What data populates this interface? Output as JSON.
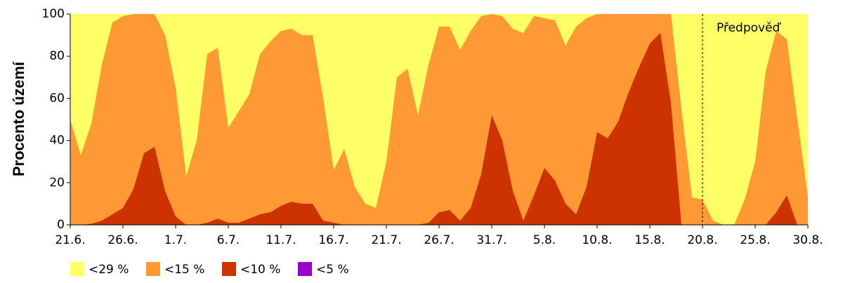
{
  "chart_data": {
    "type": "area",
    "y_label": "Procento území",
    "categories": [
      "21.6.",
      null,
      null,
      null,
      null,
      "26.6.",
      null,
      null,
      null,
      null,
      "1.7.",
      null,
      null,
      null,
      null,
      "6.7.",
      null,
      null,
      null,
      null,
      "11.7.",
      null,
      null,
      null,
      null,
      "16.7.",
      null,
      null,
      null,
      null,
      "21.7.",
      null,
      null,
      null,
      null,
      "26.7.",
      null,
      null,
      null,
      null,
      "31.7.",
      null,
      null,
      null,
      null,
      "5.8.",
      null,
      null,
      null,
      null,
      "10.8.",
      null,
      null,
      null,
      null,
      "15.8.",
      null,
      null,
      null,
      null,
      "20.8.",
      null,
      null,
      null,
      null,
      "25.8.",
      null,
      null,
      null,
      null,
      "30.8."
    ],
    "series": [
      {
        "name": "<29 %",
        "color": "#ffff66",
        "values": [
          100,
          100,
          100,
          100,
          100,
          100,
          100,
          100,
          100,
          100,
          100,
          100,
          100,
          100,
          100,
          100,
          100,
          100,
          100,
          100,
          100,
          100,
          100,
          100,
          100,
          100,
          100,
          100,
          100,
          100,
          100,
          100,
          100,
          100,
          100,
          100,
          100,
          100,
          100,
          100,
          100,
          100,
          100,
          100,
          100,
          100,
          100,
          100,
          100,
          100,
          100,
          100,
          100,
          100,
          100,
          100,
          100,
          100,
          100,
          100,
          100,
          100,
          100,
          100,
          100,
          100,
          100,
          100,
          100,
          100,
          100
        ]
      },
      {
        "name": "<15 %",
        "color": "#ff9933",
        "values": [
          50,
          33,
          48,
          76,
          96,
          99,
          100,
          100,
          100,
          90,
          65,
          23,
          40,
          81,
          84,
          46,
          54,
          62,
          81,
          87,
          92,
          93,
          90,
          90,
          60,
          26,
          36,
          18,
          10,
          8,
          30,
          70,
          74,
          52,
          76,
          94,
          94,
          83,
          92,
          99,
          100,
          99,
          93,
          91,
          99,
          98,
          97,
          85,
          94,
          98,
          100,
          100,
          100,
          100,
          100,
          100,
          100,
          100,
          55,
          13,
          12,
          2,
          0,
          0,
          12,
          30,
          73,
          92,
          88,
          50,
          13
        ]
      },
      {
        "name": "<10 %",
        "color": "#cc3300",
        "values": [
          0,
          0,
          0.5,
          2,
          5,
          8,
          17,
          34,
          37,
          16,
          4,
          0,
          0,
          1,
          3,
          1,
          1,
          3,
          5,
          6,
          9,
          11,
          10,
          10,
          2,
          1,
          0,
          0,
          0,
          0,
          0,
          0,
          0,
          0,
          1,
          6,
          7,
          2,
          8,
          24,
          52,
          40,
          16,
          2,
          14,
          27,
          21,
          10,
          5,
          18,
          44,
          41,
          49,
          63,
          75,
          86,
          91,
          58,
          0,
          0,
          0,
          0,
          0,
          0,
          0,
          0,
          0,
          6,
          14,
          0,
          0
        ]
      },
      {
        "name": "<5 %",
        "color": "#9900cc",
        "values": [
          0,
          0,
          0,
          0,
          0,
          0,
          0,
          0,
          0,
          0,
          0,
          0,
          0,
          0,
          0,
          0,
          0,
          0,
          0,
          0,
          0,
          0,
          0,
          0,
          0,
          0,
          0,
          0,
          0,
          0,
          0,
          0,
          0,
          0,
          0,
          0,
          0,
          0,
          0,
          0,
          0,
          0,
          0,
          0,
          0,
          0,
          0,
          0,
          0,
          0,
          0,
          0,
          0,
          0,
          0,
          0,
          0,
          0,
          0,
          0,
          0,
          0,
          0,
          0,
          0,
          0,
          0,
          0,
          0,
          0,
          0
        ]
      }
    ],
    "annotation": {
      "text": "Předpověď",
      "x": "20.8."
    },
    "ylim": [
      0,
      100
    ],
    "yticks": [
      0,
      20,
      40,
      60,
      80,
      100
    ],
    "grid": false
  }
}
